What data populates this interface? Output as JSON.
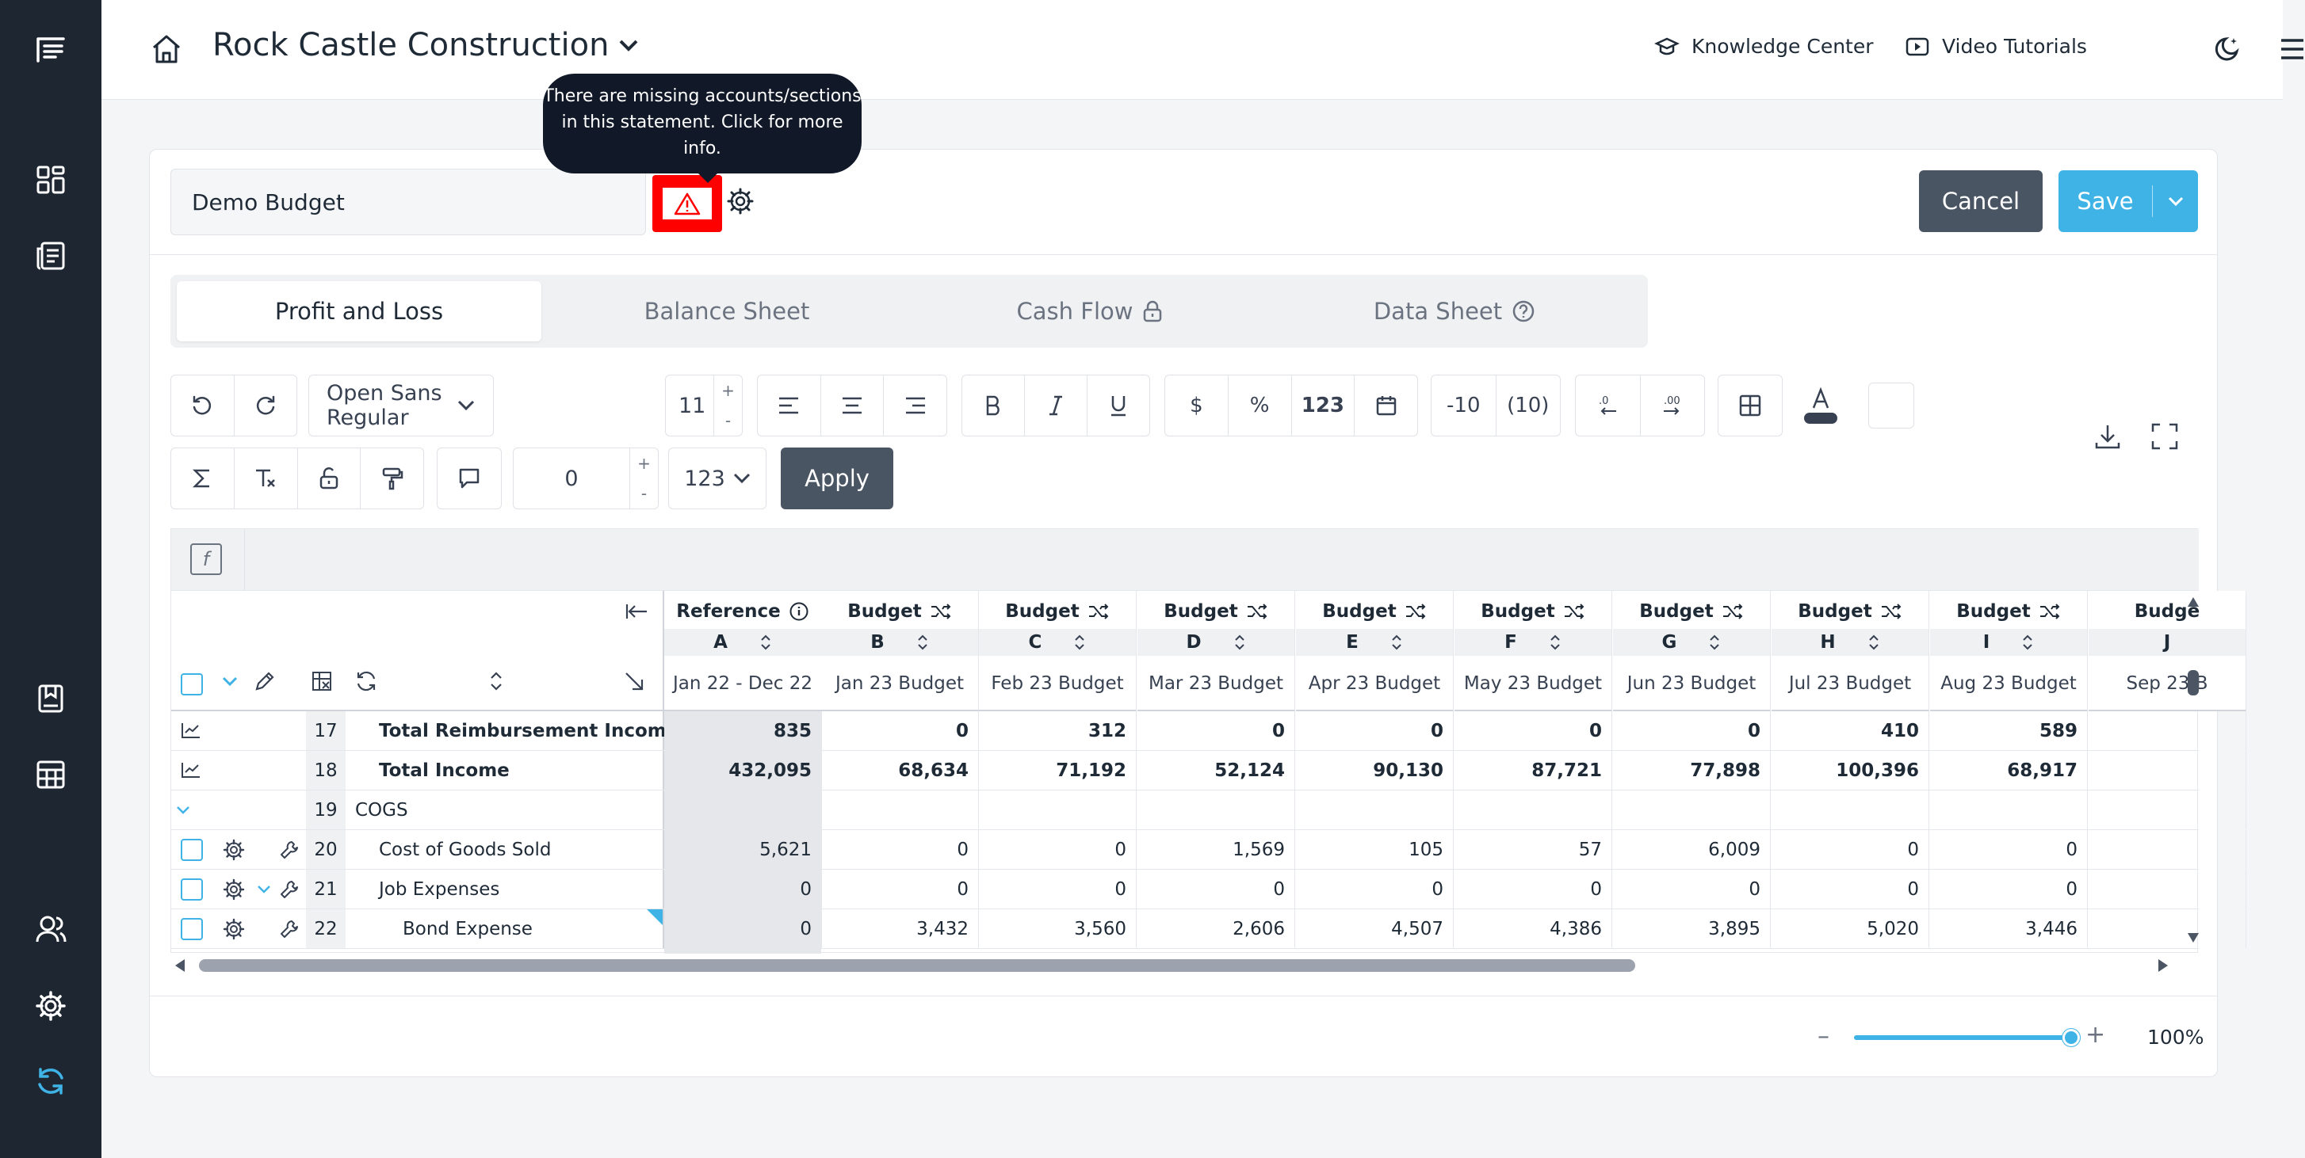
{
  "header": {
    "company": "Rock Castle Construction",
    "knowledge_center": "Knowledge Center",
    "video_tutorials": "Video Tutorials"
  },
  "budget": {
    "name": "Demo Budget",
    "tooltip": "There are missing accounts/sections in this statement. Click for more info.",
    "cancel_label": "Cancel",
    "save_label": "Save"
  },
  "tabs": [
    {
      "label": "Profit and Loss"
    },
    {
      "label": "Balance Sheet"
    },
    {
      "label": "Cash Flow"
    },
    {
      "label": "Data Sheet"
    }
  ],
  "toolbar": {
    "font_family": "Open Sans Regular",
    "font_size": "11",
    "plus": "+",
    "minus": "-",
    "currency": "$",
    "percent": "%",
    "number": "123",
    "neg1": "-10",
    "neg2": "(10)",
    "dec_value": "0",
    "format_select": "123",
    "apply_label": "Apply"
  },
  "grid": {
    "columns": [
      {
        "top": "Reference",
        "letter": "A",
        "period": "Jan 22 - Dec 22"
      },
      {
        "top": "Budget",
        "letter": "B",
        "period": "Jan 23 Budget"
      },
      {
        "top": "Budget",
        "letter": "C",
        "period": "Feb 23 Budget"
      },
      {
        "top": "Budget",
        "letter": "D",
        "period": "Mar 23 Budget"
      },
      {
        "top": "Budget",
        "letter": "E",
        "period": "Apr 23 Budget"
      },
      {
        "top": "Budget",
        "letter": "F",
        "period": "May 23 Budget"
      },
      {
        "top": "Budget",
        "letter": "G",
        "period": "Jun 23 Budget"
      },
      {
        "top": "Budget",
        "letter": "H",
        "period": "Jul 23 Budget"
      },
      {
        "top": "Budget",
        "letter": "I",
        "period": "Aug 23 Budget"
      },
      {
        "top": "Budge",
        "letter": "J",
        "period": "Sep 23 B"
      }
    ],
    "rows": [
      {
        "num": "17",
        "label": "Total Reimbursement Income",
        "bold": true,
        "values": [
          "835",
          "0",
          "312",
          "0",
          "0",
          "0",
          "0",
          "410",
          "589",
          ""
        ]
      },
      {
        "num": "18",
        "label": "Total Income",
        "bold": true,
        "values": [
          "432,095",
          "68,634",
          "71,192",
          "52,124",
          "90,130",
          "87,721",
          "77,898",
          "100,396",
          "68,917",
          ""
        ]
      },
      {
        "num": "19",
        "label": "COGS",
        "bold": false,
        "values": [
          "",
          "",
          "",
          "",
          "",
          "",
          "",
          "",
          "",
          ""
        ]
      },
      {
        "num": "20",
        "label": "Cost of Goods Sold",
        "bold": false,
        "values": [
          "5,621",
          "0",
          "0",
          "1,569",
          "105",
          "57",
          "6,009",
          "0",
          "0",
          ""
        ]
      },
      {
        "num": "21",
        "label": "Job Expenses",
        "bold": false,
        "values": [
          "0",
          "0",
          "0",
          "0",
          "0",
          "0",
          "0",
          "0",
          "0",
          ""
        ]
      },
      {
        "num": "22",
        "label": "Bond Expense",
        "bold": false,
        "values": [
          "0",
          "3,432",
          "3,560",
          "2,606",
          "4,507",
          "4,386",
          "3,895",
          "5,020",
          "3,446",
          ""
        ]
      }
    ]
  },
  "zoom": {
    "minus": "–",
    "plus": "+",
    "value": "100%",
    "level_percent": 100
  },
  "colors": {
    "sidebar": "#1e2631",
    "accent": "#3fb3e6",
    "warning": "#ff0000"
  }
}
